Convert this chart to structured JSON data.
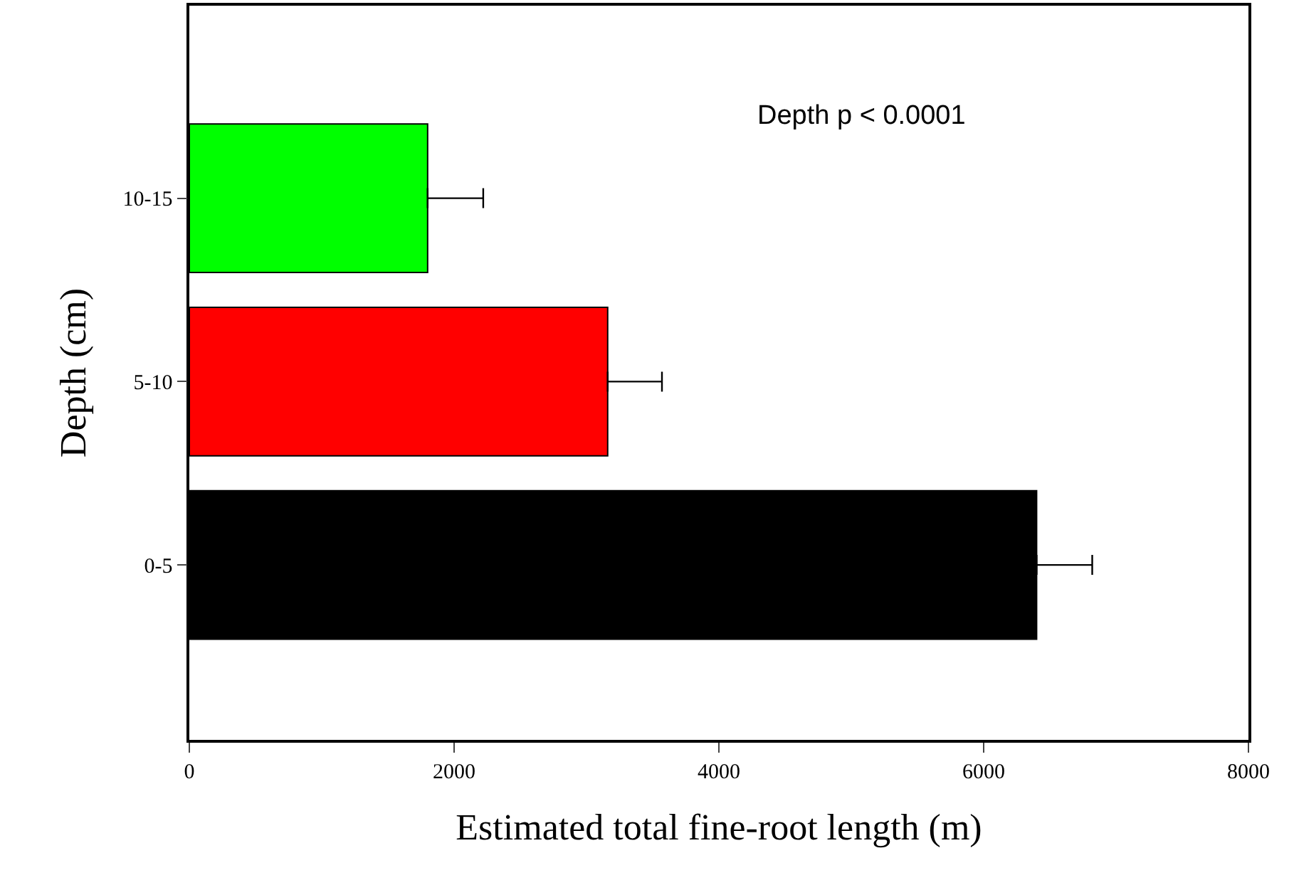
{
  "chart_data": {
    "type": "bar",
    "orientation": "horizontal",
    "xlabel": "Estimated total fine-root length (m)",
    "ylabel": "Depth (cm)",
    "categories": [
      "10-15",
      "5-10",
      "0-5"
    ],
    "values": [
      1800,
      3160,
      6400
    ],
    "colors": [
      "#00ff00",
      "#ff0000",
      "#000000"
    ],
    "errors": [
      [
        1800,
        2220
      ],
      [
        3160,
        3570
      ],
      [
        6400,
        6820
      ]
    ],
    "xlim": [
      0,
      8000
    ],
    "xticks": [
      0,
      2000,
      4000,
      6000,
      8000
    ],
    "annotations": [
      "Depth p < 0.0001"
    ]
  }
}
